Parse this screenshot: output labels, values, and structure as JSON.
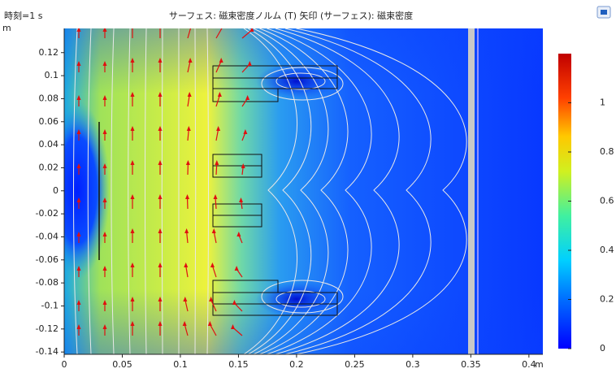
{
  "chart_data": {
    "type": "surface",
    "time_label": "時刻=1 s",
    "title": "サーフェス: 磁束密度ノルム (T)  矢印 (サーフェス): 磁束密度",
    "x_label": "m",
    "y_label": "m",
    "xlim": [
      0,
      0.412
    ],
    "ylim": [
      -0.142,
      0.141
    ],
    "xticks": [
      0,
      0.05,
      0.1,
      0.15,
      0.2,
      0.25,
      0.3,
      0.35,
      0.4
    ],
    "yticks": [
      -0.14,
      -0.12,
      -0.1,
      -0.08,
      -0.06,
      -0.04,
      -0.02,
      0,
      0.02,
      0.04,
      0.06,
      0.08,
      0.1,
      0.12
    ],
    "colorbar_lim": [
      0,
      1.2
    ],
    "colorbar_ticks": [
      0,
      0.2,
      0.4,
      0.6,
      0.8,
      1
    ]
  }
}
